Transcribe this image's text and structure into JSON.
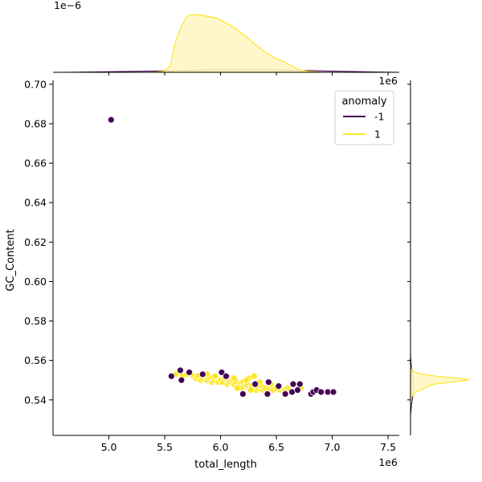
{
  "chart_data": {
    "type": "scatter",
    "title": "",
    "xlabel": "total_length",
    "ylabel": "GC_Content",
    "x_offset_label": "1e6",
    "y_offset_label": "",
    "xlim": [
      4.5,
      7.6
    ],
    "ylim": [
      0.522,
      0.702
    ],
    "x_ticks": [
      5.0,
      5.5,
      6.0,
      6.5,
      7.0,
      7.5
    ],
    "x_tick_labels": [
      "5.0",
      "5.5",
      "6.0",
      "6.5",
      "7.0",
      "7.5"
    ],
    "y_ticks": [
      0.54,
      0.56,
      0.58,
      0.6,
      0.62,
      0.64,
      0.66,
      0.68,
      0.7
    ],
    "y_tick_labels": [
      "0.54",
      "0.56",
      "0.58",
      "0.60",
      "0.62",
      "0.64",
      "0.66",
      "0.68",
      "0.70"
    ],
    "grid": false,
    "legend": {
      "title": "anomaly",
      "placement": "top-right",
      "entries": [
        "-1",
        "1"
      ]
    },
    "colors": {
      "anomaly_neg": "#440154",
      "normal": "#fde725",
      "normal_fill": "#fdf6c4",
      "anomaly_fill": "#d9b7d2"
    },
    "series": [
      {
        "name": "-1",
        "points": [
          [
            5.02,
            0.682
          ],
          [
            5.56,
            0.552
          ],
          [
            5.64,
            0.555
          ],
          [
            5.65,
            0.55
          ],
          [
            5.72,
            0.554
          ],
          [
            5.84,
            0.553
          ],
          [
            6.01,
            0.554
          ],
          [
            6.2,
            0.543
          ],
          [
            6.42,
            0.543
          ],
          [
            6.43,
            0.549
          ],
          [
            6.52,
            0.547
          ],
          [
            6.58,
            0.543
          ],
          [
            6.64,
            0.544
          ],
          [
            6.65,
            0.548
          ],
          [
            6.69,
            0.545
          ],
          [
            6.71,
            0.548
          ],
          [
            6.81,
            0.543
          ],
          [
            6.83,
            0.544
          ],
          [
            6.86,
            0.545
          ],
          [
            6.9,
            0.544
          ],
          [
            6.96,
            0.544
          ],
          [
            7.01,
            0.544
          ],
          [
            6.31,
            0.548
          ],
          [
            6.05,
            0.552
          ]
        ]
      },
      {
        "name": "1",
        "points": [
          [
            5.6,
            0.553
          ],
          [
            5.66,
            0.552
          ],
          [
            5.7,
            0.553
          ],
          [
            5.74,
            0.553
          ],
          [
            5.76,
            0.552
          ],
          [
            5.78,
            0.551
          ],
          [
            5.8,
            0.552
          ],
          [
            5.82,
            0.55
          ],
          [
            5.84,
            0.551
          ],
          [
            5.86,
            0.552
          ],
          [
            5.88,
            0.55
          ],
          [
            5.9,
            0.551
          ],
          [
            5.92,
            0.549
          ],
          [
            5.94,
            0.55
          ],
          [
            5.96,
            0.551
          ],
          [
            5.98,
            0.549
          ],
          [
            6.0,
            0.55
          ],
          [
            6.02,
            0.549
          ],
          [
            6.04,
            0.551
          ],
          [
            6.06,
            0.548
          ],
          [
            6.08,
            0.549
          ],
          [
            6.1,
            0.55
          ],
          [
            6.12,
            0.548
          ],
          [
            6.14,
            0.549
          ],
          [
            6.16,
            0.547
          ],
          [
            6.18,
            0.548
          ],
          [
            6.2,
            0.549
          ],
          [
            6.22,
            0.547
          ],
          [
            6.24,
            0.548
          ],
          [
            6.26,
            0.546
          ],
          [
            6.28,
            0.547
          ],
          [
            6.3,
            0.552
          ],
          [
            6.32,
            0.545
          ],
          [
            6.34,
            0.546
          ],
          [
            6.36,
            0.547
          ],
          [
            6.38,
            0.545
          ],
          [
            6.4,
            0.546
          ],
          [
            6.44,
            0.546
          ],
          [
            6.47,
            0.545
          ],
          [
            6.5,
            0.546
          ],
          [
            6.54,
            0.545
          ],
          [
            6.57,
            0.545
          ],
          [
            6.6,
            0.546
          ],
          [
            5.88,
            0.553
          ],
          [
            6.06,
            0.552
          ],
          [
            6.25,
            0.551
          ],
          [
            6.27,
            0.545
          ],
          [
            6.12,
            0.551
          ],
          [
            5.95,
            0.552
          ],
          [
            6.18,
            0.546
          ],
          [
            6.35,
            0.549
          ],
          [
            6.15,
            0.546
          ],
          [
            6.45,
            0.548
          ],
          [
            6.23,
            0.55
          ],
          [
            6.58,
            0.544
          ],
          [
            6.72,
            0.546
          ]
        ]
      }
    ],
    "marginal_x": {
      "scale_label": "1e−6",
      "series_normal_density": [
        [
          5.4,
          0.0
        ],
        [
          5.5,
          0.02
        ],
        [
          5.55,
          0.12
        ],
        [
          5.6,
          0.55
        ],
        [
          5.65,
          0.8
        ],
        [
          5.7,
          0.97
        ],
        [
          5.75,
          1.0
        ],
        [
          5.82,
          0.99
        ],
        [
          5.9,
          0.96
        ],
        [
          5.98,
          0.93
        ],
        [
          6.05,
          0.85
        ],
        [
          6.12,
          0.78
        ],
        [
          6.2,
          0.66
        ],
        [
          6.3,
          0.5
        ],
        [
          6.4,
          0.35
        ],
        [
          6.48,
          0.25
        ],
        [
          6.55,
          0.2
        ],
        [
          6.62,
          0.13
        ],
        [
          6.7,
          0.05
        ],
        [
          6.8,
          0.01
        ],
        [
          6.9,
          0.0
        ]
      ],
      "series_anomaly_density": [
        [
          4.6,
          0.0
        ],
        [
          5.0,
          0.01
        ],
        [
          5.4,
          0.02
        ],
        [
          5.8,
          0.04
        ],
        [
          6.1,
          0.05
        ],
        [
          6.4,
          0.045
        ],
        [
          6.7,
          0.035
        ],
        [
          7.0,
          0.02
        ],
        [
          7.4,
          0.005
        ],
        [
          7.6,
          0.0
        ]
      ]
    },
    "marginal_y": {
      "series_normal_density": [
        [
          0.54,
          0.0
        ],
        [
          0.5425,
          0.04
        ],
        [
          0.544,
          0.1
        ],
        [
          0.5455,
          0.22
        ],
        [
          0.547,
          0.3
        ],
        [
          0.548,
          0.42
        ],
        [
          0.549,
          0.7
        ],
        [
          0.55,
          0.98
        ],
        [
          0.5505,
          1.0
        ],
        [
          0.551,
          0.85
        ],
        [
          0.552,
          0.45
        ],
        [
          0.553,
          0.2
        ],
        [
          0.554,
          0.08
        ],
        [
          0.555,
          0.02
        ],
        [
          0.557,
          0.0
        ]
      ],
      "series_anomaly_density": [
        [
          0.532,
          0.0
        ],
        [
          0.538,
          0.02
        ],
        [
          0.542,
          0.04
        ],
        [
          0.546,
          0.05
        ],
        [
          0.55,
          0.045
        ],
        [
          0.554,
          0.03
        ],
        [
          0.558,
          0.01
        ],
        [
          0.564,
          0.0
        ]
      ]
    }
  }
}
